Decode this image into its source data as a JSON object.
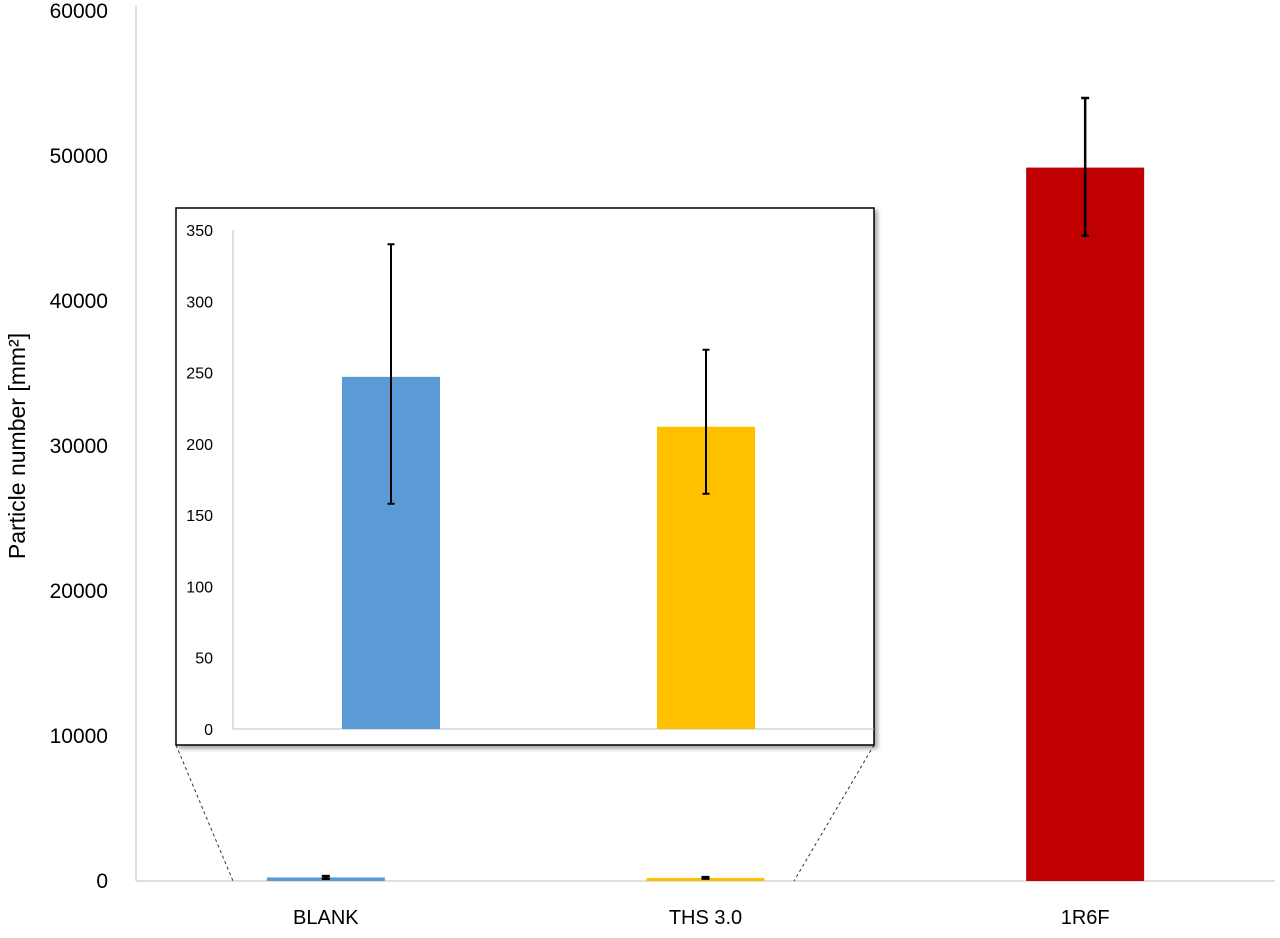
{
  "chart_data": [
    {
      "type": "bar",
      "categories": [
        "BLANK",
        "THS 3.0",
        "1R6F"
      ],
      "values": [
        247,
        212,
        49200
      ],
      "error_low": [
        158,
        165,
        44500
      ],
      "error_high": [
        340,
        266,
        54000
      ],
      "colors": [
        "#5B9BD5",
        "#FFC000",
        "#C00000"
      ],
      "ylabel": "Particle number [mm²]",
      "ylim": [
        0,
        60000
      ],
      "yticks": [
        "0",
        "10000",
        "20000",
        "30000",
        "40000",
        "50000",
        "60000"
      ],
      "grid": false,
      "legend": "none"
    },
    {
      "type": "bar",
      "inset": true,
      "categories": [
        "BLANK",
        "THS 3.0"
      ],
      "values": [
        247,
        212
      ],
      "error_low": [
        158,
        165
      ],
      "error_high": [
        340,
        266
      ],
      "colors": [
        "#5B9BD5",
        "#FFC000"
      ],
      "ylim": [
        0,
        350
      ],
      "yticks": [
        "0",
        "50",
        "100",
        "150",
        "200",
        "250",
        "300",
        "350"
      ],
      "grid": false,
      "legend": "none"
    }
  ]
}
